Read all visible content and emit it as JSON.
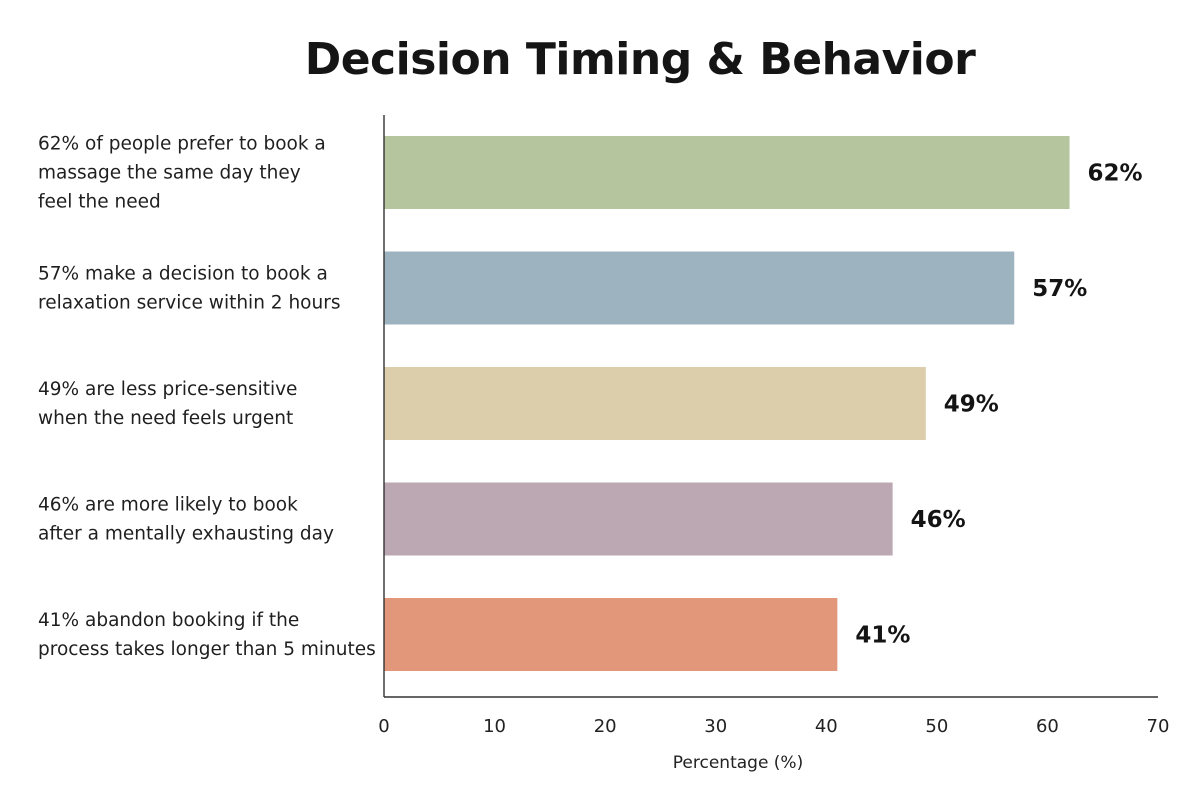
{
  "chart_data": {
    "type": "bar",
    "orientation": "horizontal",
    "title": "Decision Timing & Behavior",
    "xlabel": "Percentage (%)",
    "ylabel": "",
    "xlim": [
      0,
      70
    ],
    "xticks": [
      0,
      10,
      20,
      30,
      40,
      50,
      60,
      70
    ],
    "grid": false,
    "categories": [
      [
        "62% of people prefer to book a",
        "massage the same day they",
        "feel the need"
      ],
      [
        "57% make a decision to book a",
        "relaxation service within 2 hours"
      ],
      [
        "49% are less price-sensitive",
        "when the need feels urgent"
      ],
      [
        "46% are more likely to book",
        "after a mentally exhausting day"
      ],
      [
        "41% abandon booking if the",
        "process takes longer than 5 minutes"
      ]
    ],
    "values": [
      62,
      57,
      49,
      46,
      41
    ],
    "value_labels": [
      "62%",
      "57%",
      "49%",
      "46%",
      "41%"
    ],
    "colors": [
      "#b5c69f",
      "#9db4c0",
      "#dccdab",
      "#bba8b2",
      "#e2967a"
    ]
  }
}
